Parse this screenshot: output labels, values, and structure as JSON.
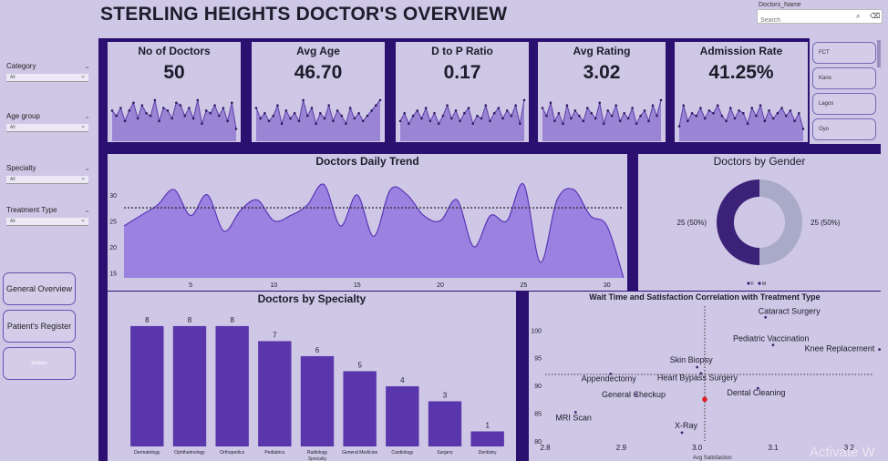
{
  "title": "STERLING HEIGHTS DOCTOR'S OVERVIEW",
  "search": {
    "label": "Doctors_Name",
    "placeholder": "Search"
  },
  "slicers": [
    {
      "label": "Category",
      "value": "All"
    },
    {
      "label": "Age group",
      "value": "All"
    },
    {
      "label": "Specialty",
      "value": "All"
    },
    {
      "label": "Treatment Type",
      "value": "All"
    }
  ],
  "nav": {
    "general_overview": "General Overview",
    "patients_register": "Patient's Register",
    "doctors": "Doctors"
  },
  "states": [
    "FCT",
    "Kano",
    "Lagos",
    "Oyo"
  ],
  "kpis": [
    {
      "title": "No of Doctors",
      "value": "50",
      "spark": [
        11,
        9,
        12,
        7,
        11,
        14,
        8,
        13,
        10,
        9,
        15,
        7,
        12,
        11,
        8,
        14,
        13,
        9,
        12,
        8,
        15,
        6,
        11,
        10,
        13,
        9,
        12,
        7,
        14,
        4
      ]
    },
    {
      "title": "Avg Age",
      "value": "46.70",
      "spark": [
        12,
        8,
        10,
        7,
        9,
        13,
        6,
        11,
        8,
        10,
        7,
        15,
        9,
        12,
        6,
        10,
        8,
        13,
        7,
        11,
        9,
        6,
        12,
        8,
        10,
        7,
        9,
        11,
        13,
        15
      ]
    },
    {
      "title": "D to P Ratio",
      "value": "0.17",
      "spark": [
        7,
        10,
        6,
        9,
        11,
        8,
        12,
        7,
        10,
        6,
        9,
        13,
        8,
        11,
        7,
        10,
        12,
        6,
        9,
        8,
        13,
        7,
        10,
        12,
        8,
        11,
        9,
        13,
        6,
        15
      ]
    },
    {
      "title": "Avg Rating",
      "value": "3.02",
      "spark": [
        12,
        9,
        14,
        7,
        10,
        6,
        13,
        8,
        11,
        9,
        7,
        12,
        10,
        8,
        14,
        6,
        11,
        9,
        13,
        7,
        10,
        8,
        12,
        6,
        9,
        11,
        7,
        13,
        9,
        15
      ]
    },
    {
      "title": "Admission Rate",
      "value": "41.25%",
      "spark": [
        5,
        13,
        7,
        10,
        9,
        12,
        8,
        11,
        10,
        13,
        9,
        7,
        12,
        8,
        11,
        10,
        6,
        12,
        9,
        13,
        7,
        11,
        8,
        10,
        12,
        9,
        11,
        7,
        10,
        4
      ]
    }
  ],
  "chart_data": [
    {
      "type": "area",
      "title": "Doctors Daily Trend",
      "x": [
        1,
        2,
        3,
        4,
        5,
        6,
        7,
        8,
        9,
        10,
        11,
        12,
        13,
        14,
        15,
        16,
        17,
        18,
        19,
        20,
        21,
        22,
        23,
        24,
        25,
        26,
        27,
        28,
        29,
        30,
        31
      ],
      "values": [
        24,
        26,
        28,
        31,
        26,
        30,
        23,
        27,
        29,
        25,
        26,
        28,
        32,
        24,
        30,
        22,
        31,
        30,
        26,
        25,
        29,
        20,
        26,
        25,
        32,
        17,
        29,
        31,
        26,
        24,
        14
      ],
      "reference_line": 27.5,
      "xticks": [
        5,
        10,
        15,
        20,
        25,
        30
      ],
      "yticks": [
        15,
        20,
        25,
        30
      ],
      "ylim": [
        14,
        34
      ]
    },
    {
      "type": "pie",
      "title": "Doctors by Gender",
      "labels": [
        "F",
        "M"
      ],
      "values": [
        25,
        25
      ],
      "data_labels": [
        "25 (50%)",
        "25 (50%)"
      ],
      "colors": [
        "#3b2178",
        "#a9aac8"
      ],
      "legend": "bottom"
    },
    {
      "type": "bar",
      "title": "Doctors by Specialty",
      "xlabel": "Specialty",
      "categories": [
        "Dermatology",
        "Ophthalmology",
        "Orthopedics",
        "Pediatrics",
        "Radiology",
        "General Medicine",
        "Cardiology",
        "Surgery",
        "Dentistry"
      ],
      "values": [
        8,
        8,
        8,
        7,
        6,
        5,
        4,
        3,
        1
      ],
      "ylim": [
        0,
        8.6
      ]
    },
    {
      "type": "scatter",
      "title": "Wait Time and Satisfaction Correlation with Treatment Type",
      "xlabel": "Avg Satisfaction",
      "xticks": [
        2.8,
        2.9,
        3.0,
        3.1,
        3.2
      ],
      "yticks": [
        80,
        85,
        90,
        95,
        100
      ],
      "xlim": [
        2.8,
        3.22
      ],
      "ylim": [
        80,
        103
      ],
      "reference_x": 3.01,
      "reference_y": 92,
      "points": [
        {
          "label": "Cataract Surgery",
          "x": 3.09,
          "y": 102.3
        },
        {
          "label": "Pediatric Vaccination",
          "x": 3.1,
          "y": 97.3
        },
        {
          "label": "Knee Replacement",
          "x": 3.24,
          "y": 96.5
        },
        {
          "label": "Skin Biopsy",
          "x": 3.0,
          "y": 93.3
        },
        {
          "label": "Heart Bypass Surgery",
          "x": 3.005,
          "y": 92.2
        },
        {
          "label": "Appendectomy",
          "x": 2.886,
          "y": 92.1
        },
        {
          "label": "Dental Cleaning",
          "x": 3.08,
          "y": 89.5
        },
        {
          "label": "General Checkup",
          "x": 2.92,
          "y": 88.4
        },
        {
          "label": "MRI Scan",
          "x": 2.84,
          "y": 85.2
        },
        {
          "label": "X-Ray",
          "x": 2.98,
          "y": 81.5
        },
        {
          "label": "",
          "x": 3.01,
          "y": 87.5,
          "highlight": true
        }
      ]
    }
  ],
  "watermark": "Activate W"
}
